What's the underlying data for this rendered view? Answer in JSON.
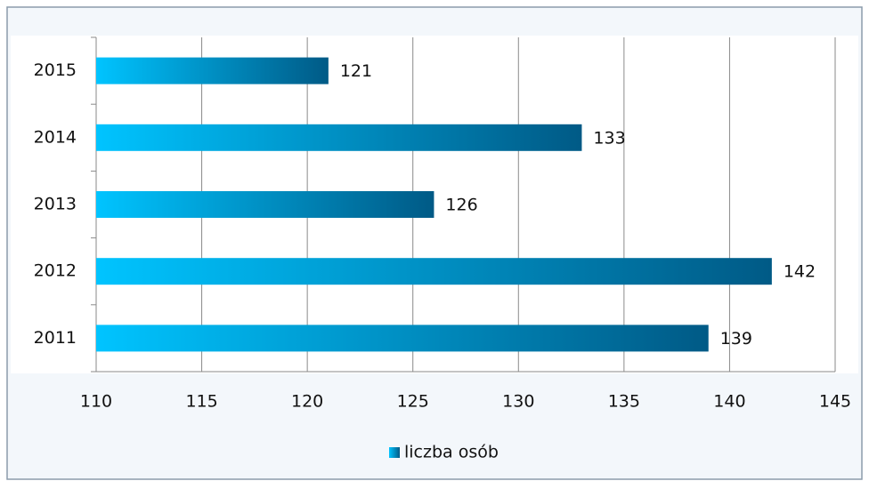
{
  "chart_data": {
    "type": "bar",
    "orientation": "horizontal",
    "categories": [
      "2011",
      "2012",
      "2013",
      "2014",
      "2015"
    ],
    "series": [
      {
        "name": "liczba osób",
        "colors": [
          "#00c4ff",
          "#005a86"
        ],
        "values": [
          139,
          142,
          126,
          133,
          121
        ]
      }
    ],
    "xlim": [
      110,
      145
    ],
    "xticks": [
      110,
      115,
      120,
      125,
      130,
      135,
      140,
      145
    ],
    "grid": true,
    "legend": "bottom"
  }
}
